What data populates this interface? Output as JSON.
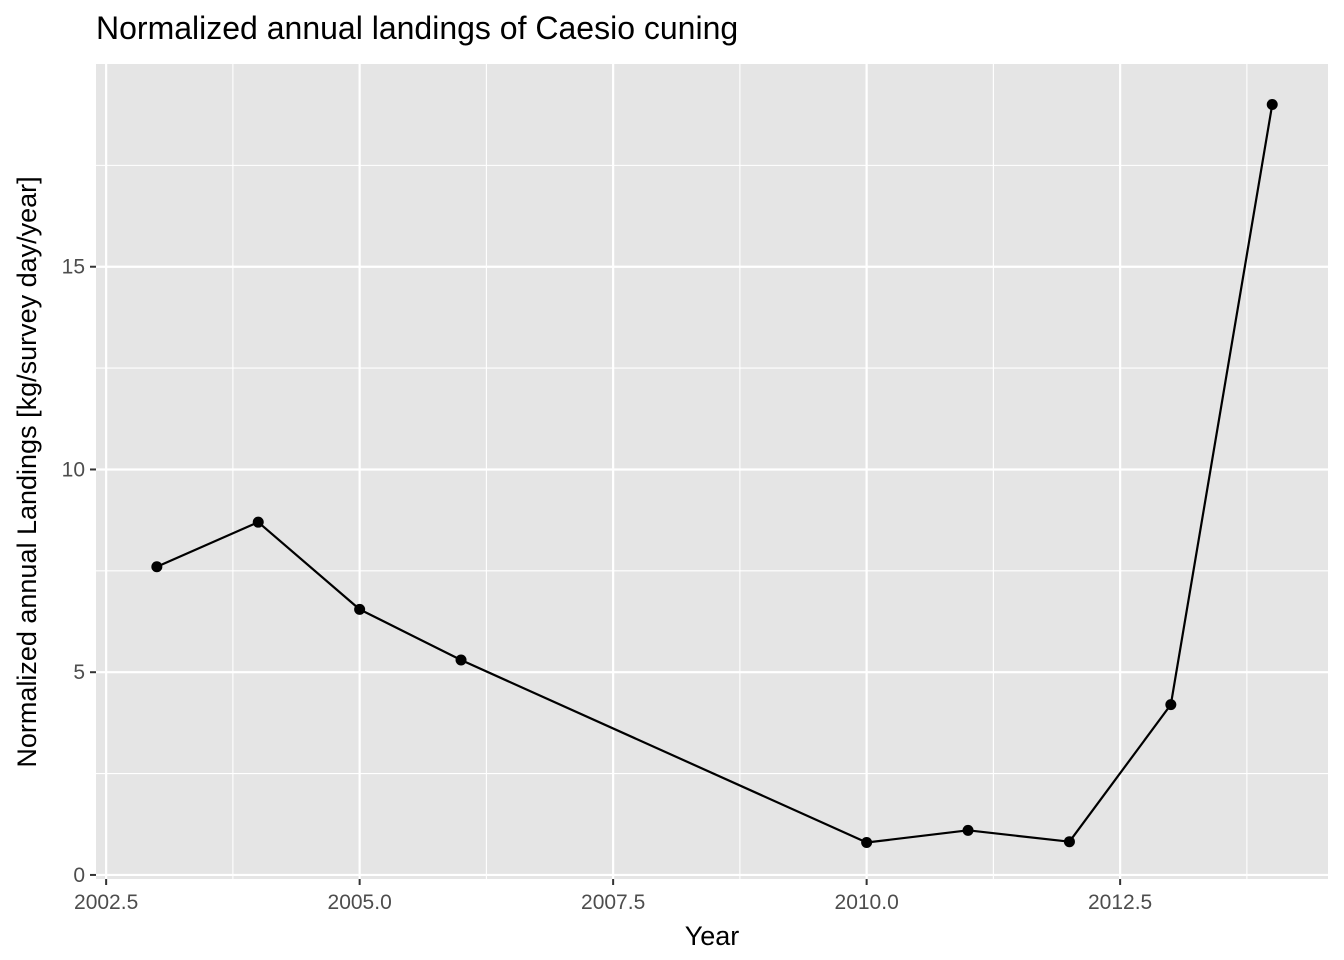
{
  "chart_data": {
    "type": "line",
    "title": "Normalized annual landings of Caesio cuning",
    "xlabel": "Year",
    "ylabel": "Normalized annual Landings [kg/survey day/year]",
    "x": [
      2003,
      2004,
      2005,
      2006,
      2010,
      2011,
      2012,
      2013,
      2014
    ],
    "series": [
      {
        "values": [
          7.6,
          8.7,
          6.55,
          5.3,
          0.8,
          1.1,
          0.82,
          4.2,
          19.0
        ]
      }
    ],
    "xlim": [
      2002.4,
      2014.55
    ],
    "ylim": [
      -0.1,
      20.0
    ],
    "xticks": [
      2002.5,
      2005.0,
      2007.5,
      2010.0,
      2012.5
    ],
    "xtick_labels": [
      "2002.5",
      "2005.0",
      "2007.5",
      "2010.0",
      "2012.5"
    ],
    "xminor": [
      2003.75,
      2006.25,
      2008.75,
      2011.25,
      2013.75
    ],
    "yticks": [
      0,
      5,
      10,
      15
    ],
    "ytick_labels": [
      "0",
      "5",
      "10",
      "15"
    ],
    "yminor": [
      2.5,
      7.5,
      12.5,
      17.5
    ],
    "grid": true,
    "legend": "none",
    "colors": {
      "panel_background": "#e5e5e5",
      "gridline": "#ffffff",
      "line": "#000000",
      "point": "#000000",
      "tick": "#333333"
    }
  }
}
